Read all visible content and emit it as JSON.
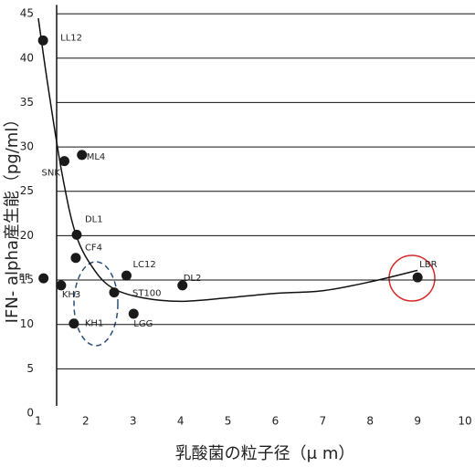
{
  "chart_data": {
    "type": "scatter",
    "xlabel": "乳酸菌の粒子径（μ m）",
    "ylabel": "IFN- alpha産生能（pg/ml）",
    "names": [
      "LL12",
      "ML4",
      "SNK",
      "DL1",
      "CF4",
      "EF",
      "KH3",
      "KH1",
      "ST100",
      "LC12",
      "LGG",
      "DL2",
      "LBR"
    ],
    "x": [
      1.1,
      1.92,
      1.55,
      1.81,
      1.79,
      1.11,
      1.48,
      1.75,
      2.6,
      2.86,
      3.01,
      4.04,
      9.0
    ],
    "values": [
      42,
      29.1,
      28.4,
      20.1,
      17.5,
      15.2,
      14.4,
      10.1,
      13.6,
      15.5,
      11.2,
      14.4,
      15.3
    ],
    "color": "#1a1a1a",
    "curve": {
      "x": [
        1.0,
        1.2,
        1.5,
        1.8,
        2.2,
        2.6,
        3.2,
        4.0,
        5.0,
        6.0,
        7.0,
        8.0,
        9.0
      ],
      "y": [
        44.5,
        37,
        27,
        20,
        16,
        14,
        13,
        12.6,
        13,
        13.5,
        13.8,
        14.8,
        16.1
      ]
    },
    "xlim": [
      0.5,
      10.5
    ],
    "xticks": [
      1,
      2,
      3,
      4,
      5,
      6,
      7,
      8,
      9,
      10
    ],
    "ylim": [
      0,
      46
    ],
    "yticks": [
      0,
      5,
      10,
      15,
      20,
      25,
      30,
      35,
      40,
      45
    ],
    "grid": true
  }
}
